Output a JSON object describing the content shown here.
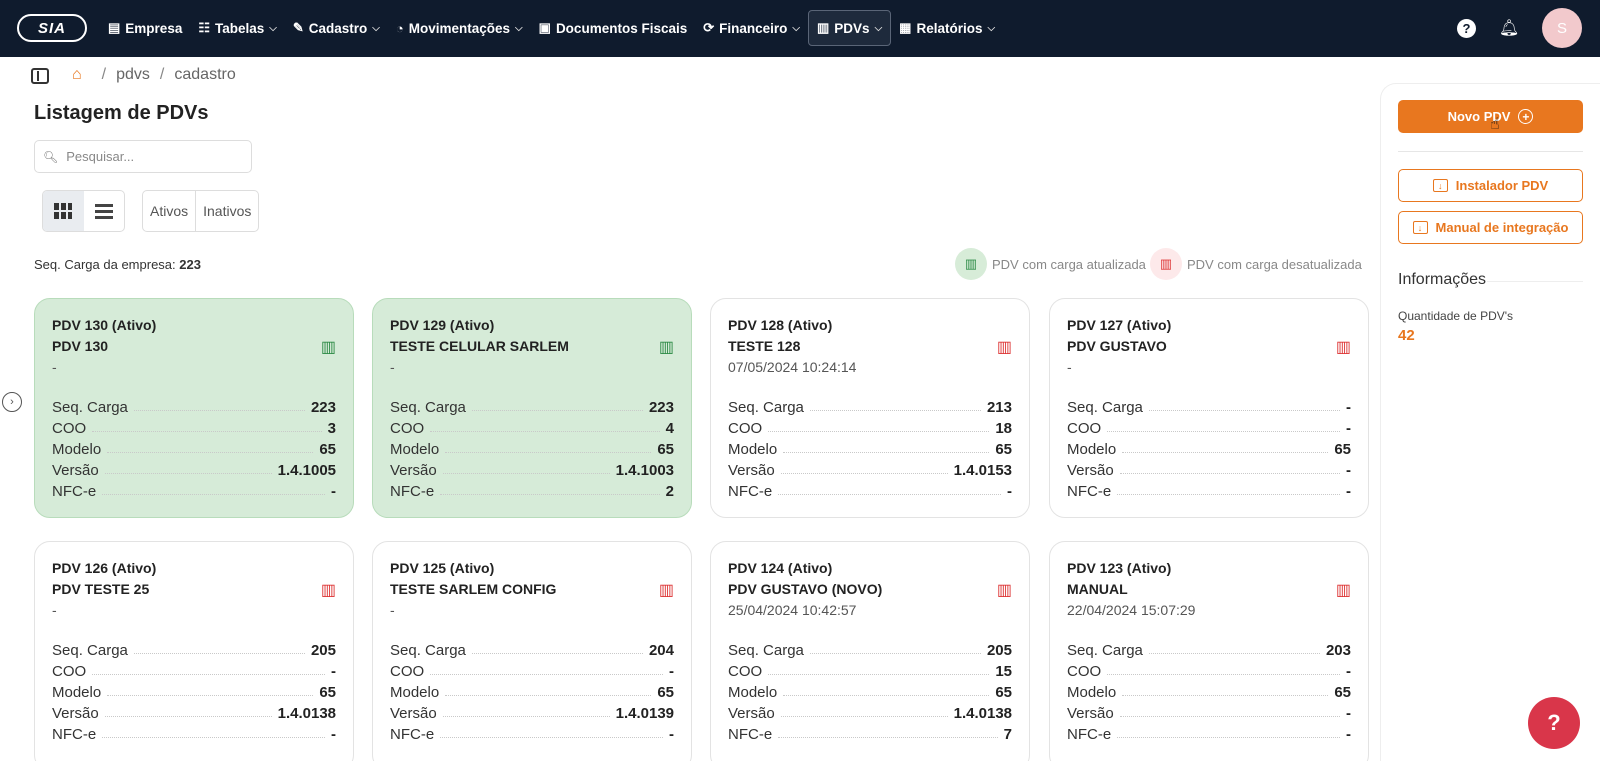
{
  "app": {
    "logo_text": "SIA"
  },
  "nav": {
    "items": [
      {
        "label": "Empresa",
        "icon": "building-icon",
        "chevron": false
      },
      {
        "label": "Tabelas",
        "icon": "table-icon",
        "chevron": true
      },
      {
        "label": "Cadastro",
        "icon": "pen-icon",
        "chevron": true
      },
      {
        "label": "Movimentações",
        "icon": "clock-icon",
        "chevron": true
      },
      {
        "label": "Documentos Fiscais",
        "icon": "document-icon",
        "chevron": false
      },
      {
        "label": "Financeiro",
        "icon": "cycle-icon",
        "chevron": true
      },
      {
        "label": "PDVs",
        "icon": "register-icon",
        "chevron": true,
        "active": true
      },
      {
        "label": "Relatórios",
        "icon": "chart-icon",
        "chevron": true
      }
    ],
    "help_glyph": "?",
    "avatar_initial": "S"
  },
  "breadcrumb": {
    "items": [
      "pdvs",
      "cadastro"
    ]
  },
  "page": {
    "title": "Listagem de PDVs",
    "search_placeholder": "Pesquisar...",
    "filters": [
      "Ativos",
      "Inativos"
    ],
    "seq_label": "Seq. Carga da empresa:",
    "seq_value": "223",
    "legend_updated": "PDV com carga atualizada",
    "legend_outdated": "PDV com carga desatualizada"
  },
  "row_labels": [
    "Seq. Carga",
    "COO",
    "Modelo",
    "Versão",
    "NFC-e"
  ],
  "cards": [
    {
      "title": "PDV 130 (Ativo)",
      "name": "PDV 130",
      "date": "-",
      "status": "updated",
      "values": [
        "223",
        "3",
        "65",
        "1.4.1005",
        "-"
      ]
    },
    {
      "title": "PDV 129 (Ativo)",
      "name": "TESTE CELULAR SARLEM",
      "date": "-",
      "status": "updated",
      "values": [
        "223",
        "4",
        "65",
        "1.4.1003",
        "2"
      ]
    },
    {
      "title": "PDV 128 (Ativo)",
      "name": "TESTE 128",
      "date": "07/05/2024 10:24:14",
      "status": "outdated",
      "values": [
        "213",
        "18",
        "65",
        "1.4.0153",
        "-"
      ]
    },
    {
      "title": "PDV 127 (Ativo)",
      "name": "PDV GUSTAVO",
      "date": "-",
      "status": "outdated",
      "values": [
        "-",
        "-",
        "65",
        "-",
        "-"
      ]
    },
    {
      "title": "PDV 126 (Ativo)",
      "name": "PDV TESTE 25",
      "date": "-",
      "status": "outdated",
      "values": [
        "205",
        "-",
        "65",
        "1.4.0138",
        "-"
      ]
    },
    {
      "title": "PDV 125 (Ativo)",
      "name": "TESTE SARLEM CONFIG",
      "date": "-",
      "status": "outdated",
      "values": [
        "204",
        "-",
        "65",
        "1.4.0139",
        "-"
      ]
    },
    {
      "title": "PDV 124 (Ativo)",
      "name": "PDV GUSTAVO (NOVO)",
      "date": "25/04/2024 10:42:57",
      "status": "outdated",
      "values": [
        "205",
        "15",
        "65",
        "1.4.0138",
        "7"
      ]
    },
    {
      "title": "PDV 123 (Ativo)",
      "name": "MANUAL",
      "date": "22/04/2024 15:07:29",
      "status": "outdated",
      "values": [
        "203",
        "-",
        "65",
        "-",
        "-"
      ]
    }
  ],
  "right_panel": {
    "novo_label": "Novo PDV",
    "install_label": "Instalador PDV",
    "manual_label": "Manual de integração",
    "info_title": "Informações",
    "qty_label": "Quantidade de PDV's",
    "qty_value": "42"
  },
  "colors": {
    "accent": "#e8771f",
    "navbar": "#0f1b2d",
    "updated_bg": "#d6ebd8",
    "status_green": "#2c8a45",
    "status_red": "#dd3333"
  }
}
